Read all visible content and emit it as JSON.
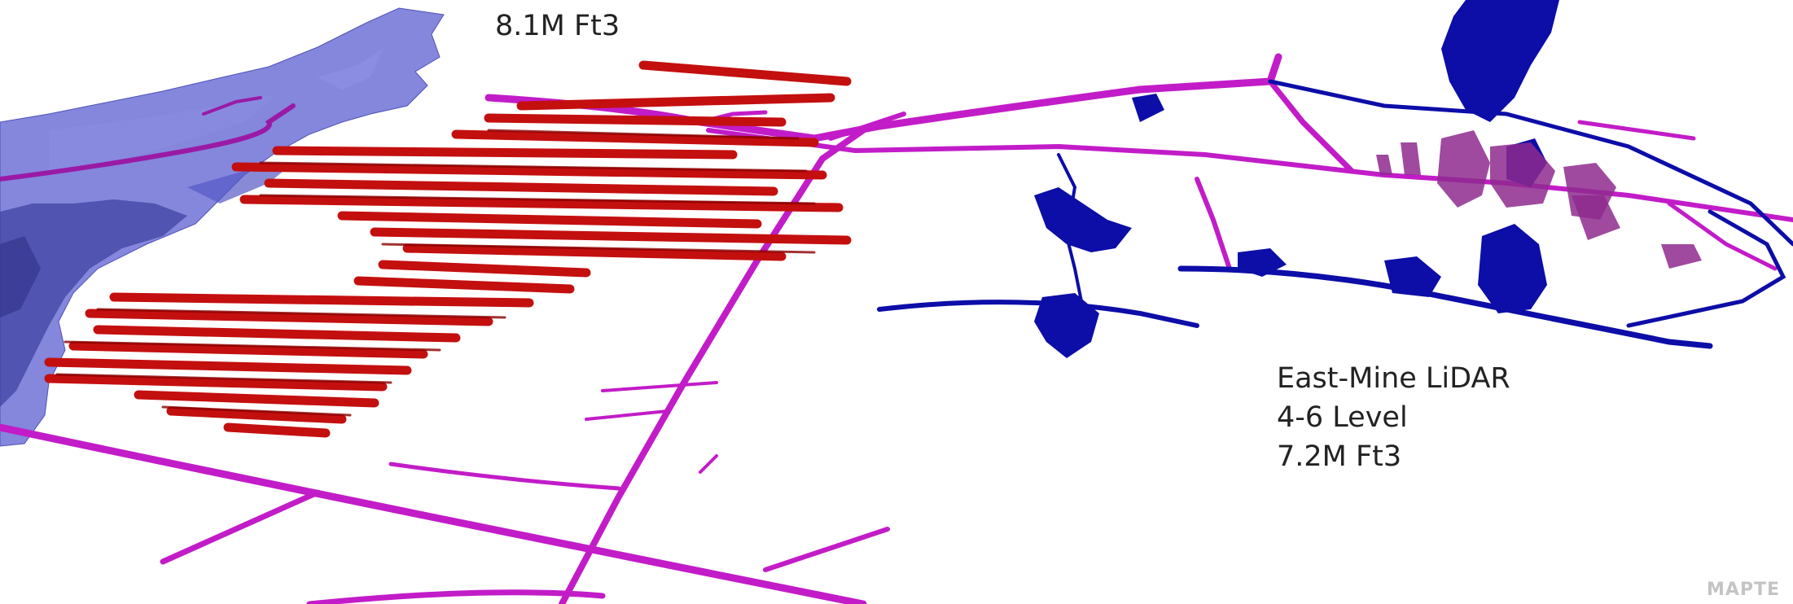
{
  "labels": {
    "west_volume": "8.1M Ft3",
    "east_title": "East-Mine LiDAR",
    "east_level": "4-6 Level",
    "east_volume": "7.2M Ft3"
  },
  "watermark": "MAPTE",
  "colors": {
    "background": "#ffffff",
    "terrain_surface": "#6f72d6",
    "old_mine_workings": "#c40f0f",
    "drifts_and_shafts": "#c21cc8",
    "lidar_point_cloud": "#0d0da8",
    "label_text": "#222222"
  }
}
